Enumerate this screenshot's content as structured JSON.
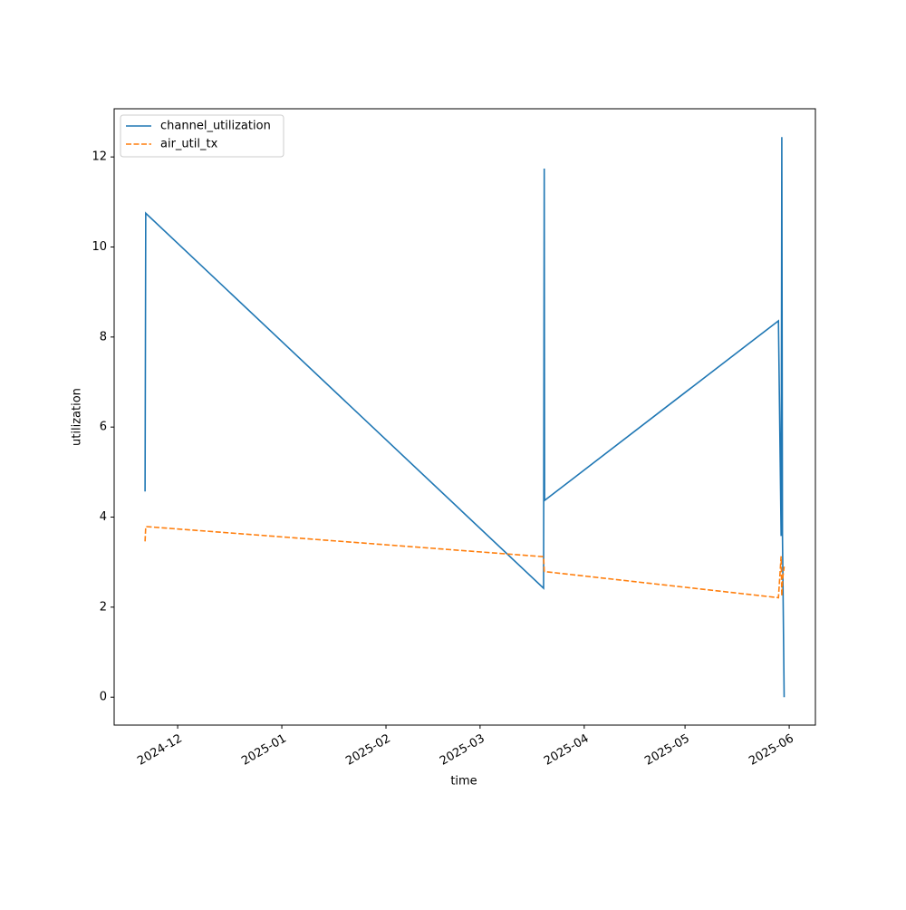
{
  "chart_data": {
    "type": "line",
    "x_label": "time",
    "y_label": "utilization",
    "x": [
      20048.3,
      20048.5,
      20166.9,
      20167.1,
      20167.2,
      20236.8,
      20237.6,
      20237.8,
      20238.0,
      20238.5
    ],
    "series": [
      {
        "name": "channel_utilization",
        "color": "#1f77b4",
        "dash": "solid",
        "values": [
          4.57,
          10.75,
          2.42,
          11.74,
          4.37,
          8.36,
          3.58,
          12.44,
          3.58,
          0.0
        ]
      },
      {
        "name": "air_util_tx",
        "color": "#ff7f0e",
        "dash": "dashed",
        "values": [
          3.46,
          3.79,
          3.12,
          2.8,
          2.79,
          2.21,
          3.13,
          2.25,
          2.6,
          2.9
        ]
      }
    ],
    "xlim": [
      20039.1,
      20247.8
    ],
    "xticks": [
      {
        "value": 20058,
        "label": "2024-12"
      },
      {
        "value": 20089,
        "label": "2025-01"
      },
      {
        "value": 20120,
        "label": "2025-02"
      },
      {
        "value": 20148,
        "label": "2025-03"
      },
      {
        "value": 20179,
        "label": "2025-04"
      },
      {
        "value": 20209,
        "label": "2025-05"
      },
      {
        "value": 20240,
        "label": "2025-06"
      }
    ],
    "ylim": [
      -0.62,
      13.07
    ],
    "yticks": [
      0,
      2,
      4,
      6,
      8,
      10,
      12
    ],
    "grid": false,
    "legend": "upper-left"
  }
}
